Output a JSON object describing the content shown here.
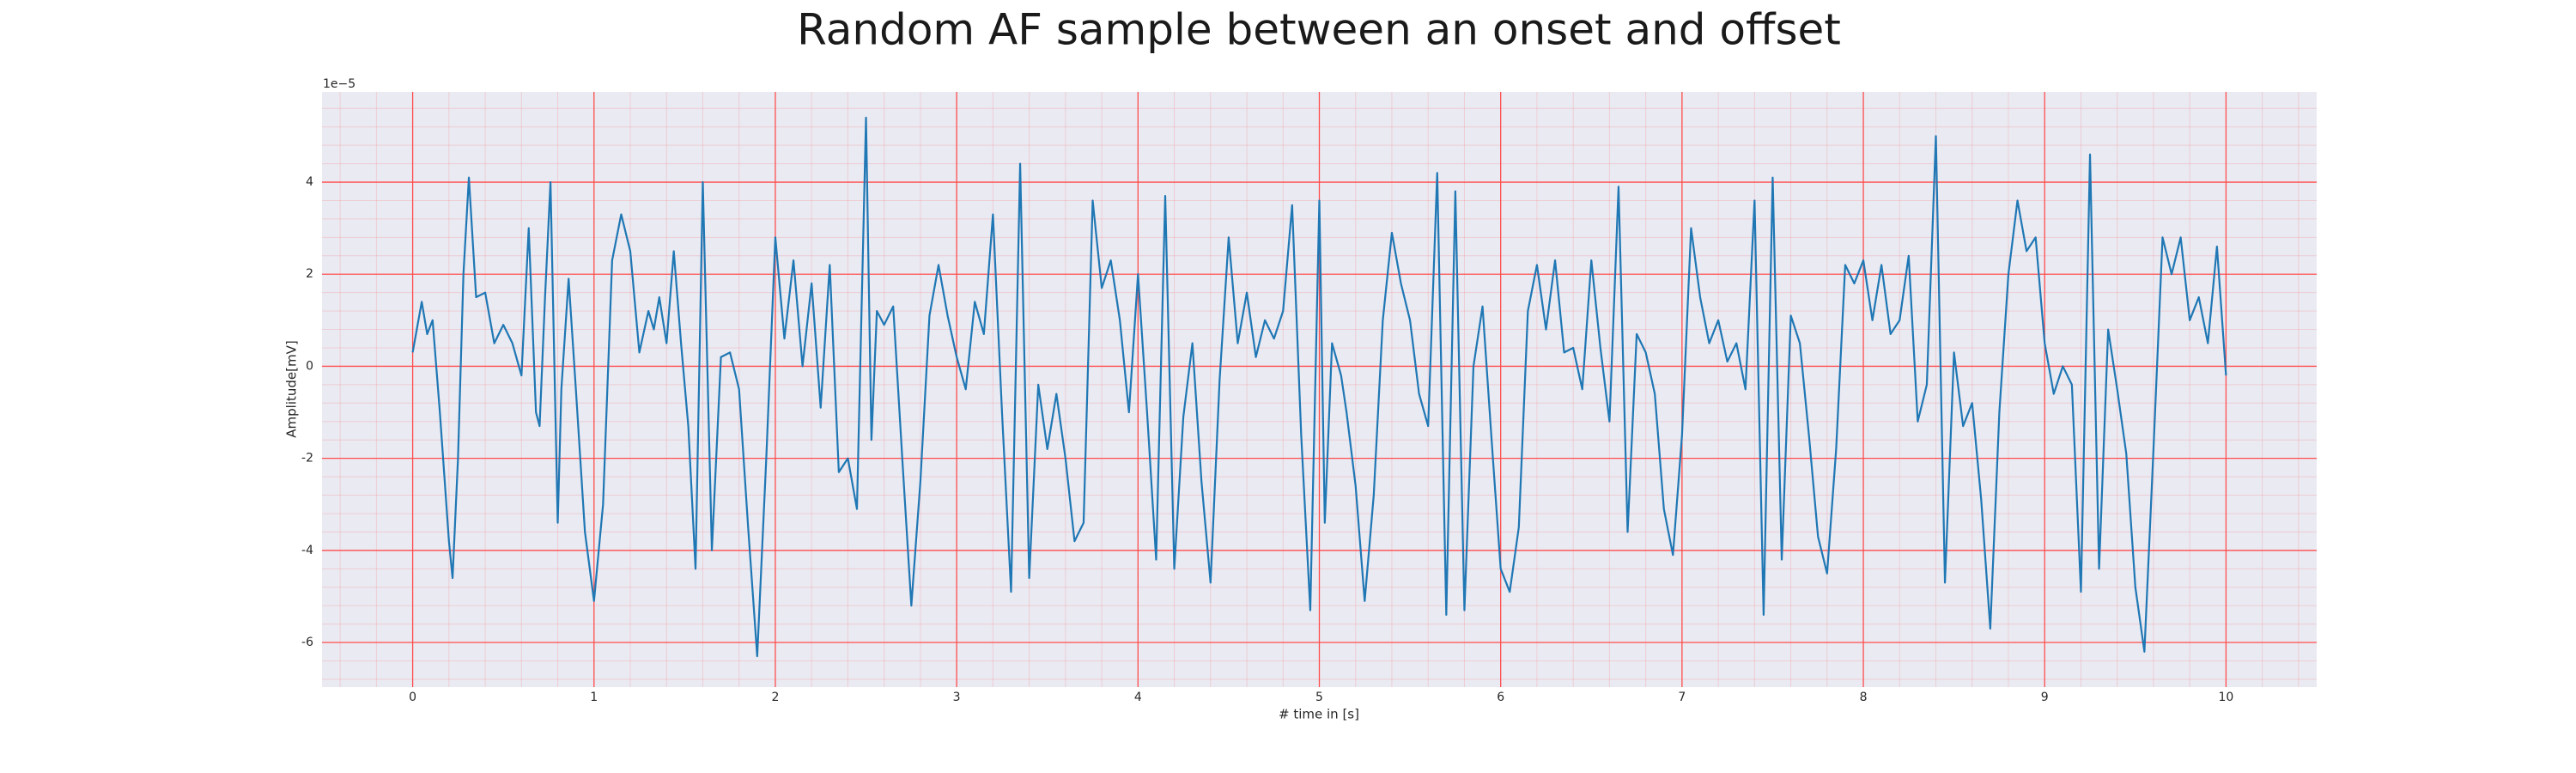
{
  "chart_data": {
    "type": "line",
    "title": "Random AF sample between an onset and offset",
    "x_label": "# time in [s]",
    "y_label": "Amplitude[mV]",
    "y_offset_text": "1e−5",
    "xlim": [
      -0.5,
      10.5
    ],
    "ylim": [
      -6.97,
      5.96
    ],
    "xticks": [
      0,
      1,
      2,
      3,
      4,
      5,
      6,
      7,
      8,
      9,
      10
    ],
    "yticks": [
      4,
      2,
      0,
      -2,
      -4,
      -6
    ],
    "grid": true,
    "grid_color": "#ff4d4d",
    "background": "#eaeaf2",
    "x": [
      0,
      0.05,
      0.08,
      0.11,
      0.15,
      0.2,
      0.22,
      0.25,
      0.28,
      0.31,
      0.35,
      0.4,
      0.45,
      0.5,
      0.55,
      0.6,
      0.64,
      0.68,
      0.7,
      0.73,
      0.76,
      0.8,
      0.82,
      0.86,
      0.9,
      0.95,
      1.0,
      1.05,
      1.1,
      1.15,
      1.2,
      1.25,
      1.3,
      1.33,
      1.36,
      1.4,
      1.44,
      1.48,
      1.52,
      1.56,
      1.6,
      1.65,
      1.7,
      1.75,
      1.8,
      1.85,
      1.9,
      1.95,
      2.0,
      2.05,
      2.1,
      2.15,
      2.2,
      2.25,
      2.3,
      2.35,
      2.4,
      2.45,
      2.5,
      2.53,
      2.56,
      2.6,
      2.65,
      2.7,
      2.75,
      2.8,
      2.85,
      2.9,
      2.95,
      3.0,
      3.05,
      3.1,
      3.15,
      3.2,
      3.25,
      3.3,
      3.35,
      3.4,
      3.45,
      3.5,
      3.55,
      3.6,
      3.65,
      3.7,
      3.75,
      3.8,
      3.85,
      3.9,
      3.95,
      4.0,
      4.05,
      4.1,
      4.15,
      4.2,
      4.25,
      4.3,
      4.35,
      4.4,
      4.45,
      4.5,
      4.55,
      4.6,
      4.65,
      4.7,
      4.75,
      4.8,
      4.85,
      4.9,
      4.95,
      5.0,
      5.03,
      5.07,
      5.12,
      5.15,
      5.2,
      5.25,
      5.3,
      5.35,
      5.4,
      5.45,
      5.5,
      5.55,
      5.6,
      5.65,
      5.7,
      5.75,
      5.8,
      5.85,
      5.9,
      5.95,
      6.0,
      6.05,
      6.1,
      6.15,
      6.2,
      6.25,
      6.3,
      6.35,
      6.4,
      6.45,
      6.5,
      6.55,
      6.6,
      6.65,
      6.7,
      6.75,
      6.8,
      6.85,
      6.9,
      6.95,
      7.0,
      7.05,
      7.1,
      7.15,
      7.2,
      7.25,
      7.3,
      7.35,
      7.4,
      7.45,
      7.5,
      7.55,
      7.6,
      7.65,
      7.7,
      7.75,
      7.8,
      7.85,
      7.9,
      7.95,
      8.0,
      8.05,
      8.1,
      8.15,
      8.2,
      8.25,
      8.3,
      8.35,
      8.4,
      8.45,
      8.5,
      8.55,
      8.6,
      8.65,
      8.7,
      8.75,
      8.8,
      8.85,
      8.9,
      8.95,
      9.0,
      9.05,
      9.1,
      9.15,
      9.2,
      9.25,
      9.3,
      9.35,
      9.4,
      9.45,
      9.5,
      9.55,
      9.6,
      9.65,
      9.7,
      9.75,
      9.8,
      9.85,
      9.9,
      9.95,
      10.0
    ],
    "series": [
      {
        "color": "#1f77b4",
        "values": [
          0.3,
          1.4,
          0.7,
          1.0,
          -1.0,
          -3.8,
          -4.6,
          -2.0,
          2.0,
          4.1,
          1.5,
          1.6,
          0.5,
          0.9,
          0.5,
          -0.2,
          3.0,
          -1.0,
          -1.3,
          1.5,
          4.0,
          -3.4,
          -0.5,
          1.9,
          -0.5,
          -3.6,
          -5.1,
          -3.0,
          2.3,
          3.3,
          2.5,
          0.3,
          1.2,
          0.8,
          1.5,
          0.5,
          2.5,
          0.5,
          -1.3,
          -4.4,
          4.0,
          -4.0,
          0.2,
          0.3,
          -0.5,
          -3.5,
          -6.3,
          -2.0,
          2.8,
          0.6,
          2.3,
          0.0,
          1.8,
          -0.9,
          2.2,
          -2.3,
          -2.0,
          -3.1,
          5.4,
          -1.6,
          1.2,
          0.9,
          1.3,
          -2.0,
          -5.2,
          -2.5,
          1.1,
          2.2,
          1.1,
          0.2,
          -0.5,
          1.4,
          0.7,
          3.3,
          -1.0,
          -4.9,
          4.4,
          -4.6,
          -0.4,
          -1.8,
          -0.6,
          -2.0,
          -3.8,
          -3.4,
          3.6,
          1.7,
          2.3,
          1.0,
          -1.0,
          2.0,
          -1.0,
          -4.2,
          3.7,
          -4.4,
          -1.1,
          0.5,
          -2.5,
          -4.7,
          -0.3,
          2.8,
          0.5,
          1.6,
          0.2,
          1.0,
          0.6,
          1.2,
          3.5,
          -1.5,
          -5.3,
          3.6,
          -3.4,
          0.5,
          -0.2,
          -1.0,
          -2.6,
          -5.1,
          -2.8,
          1.0,
          2.9,
          1.8,
          1.0,
          -0.6,
          -1.3,
          4.2,
          -5.4,
          3.8,
          -5.3,
          0.0,
          1.3,
          -1.6,
          -4.4,
          -4.9,
          -3.5,
          1.2,
          2.2,
          0.8,
          2.3,
          0.3,
          0.4,
          -0.5,
          2.3,
          0.4,
          -1.2,
          3.9,
          -3.6,
          0.7,
          0.3,
          -0.6,
          -3.1,
          -4.1,
          -1.5,
          3.0,
          1.5,
          0.5,
          1.0,
          0.1,
          0.5,
          -0.5,
          3.6,
          -5.4,
          4.1,
          -4.2,
          1.1,
          0.5,
          -1.5,
          -3.7,
          -4.5,
          -1.8,
          2.2,
          1.8,
          2.3,
          1.0,
          2.2,
          0.7,
          1.0,
          2.4,
          -1.2,
          -0.4,
          5.0,
          -4.7,
          0.3,
          -1.3,
          -0.8,
          -2.9,
          -5.7,
          -1.0,
          2.0,
          3.6,
          2.5,
          2.8,
          0.5,
          -0.6,
          0.0,
          -0.4,
          -4.9,
          4.6,
          -4.4,
          0.8,
          -0.5,
          -1.9,
          -4.8,
          -6.2,
          -1.8,
          2.8,
          2.0,
          2.8,
          1.0,
          1.5,
          0.5,
          2.6,
          -0.2
        ]
      }
    ]
  }
}
